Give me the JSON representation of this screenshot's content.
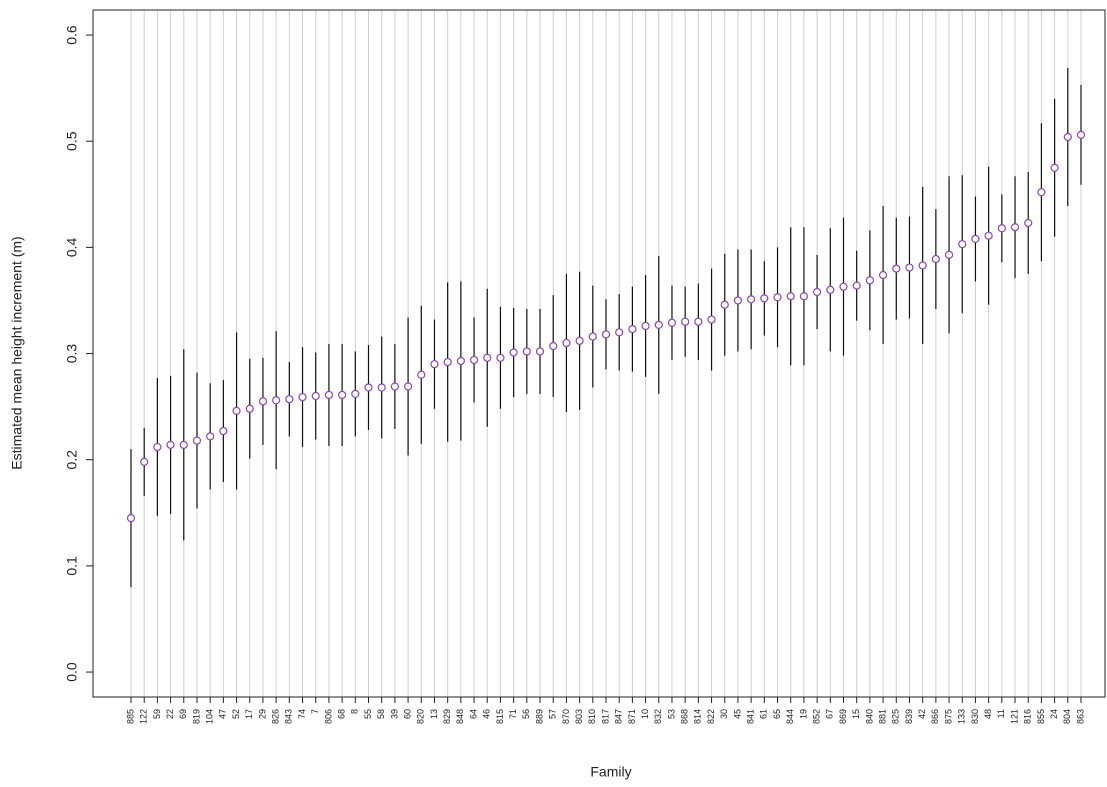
{
  "chart_data": {
    "type": "errorbar",
    "xlabel": "Family",
    "ylabel": "Estimated mean height increment (m)",
    "categories": [
      "885",
      "122",
      "59",
      "22",
      "69",
      "819",
      "104",
      "47",
      "52",
      "17",
      "29",
      "826",
      "843",
      "74",
      "7",
      "806",
      "68",
      "8",
      "55",
      "58",
      "39",
      "60",
      "820",
      "13",
      "829",
      "848",
      "64",
      "46",
      "815",
      "71",
      "56",
      "889",
      "57",
      "870",
      "803",
      "810",
      "817",
      "847",
      "871",
      "10",
      "832",
      "53",
      "868",
      "814",
      "822",
      "30",
      "45",
      "841",
      "61",
      "65",
      "844",
      "19",
      "852",
      "67",
      "869",
      "15",
      "840",
      "881",
      "825",
      "839",
      "42",
      "866",
      "875",
      "133",
      "830",
      "48",
      "11",
      "121",
      "816",
      "855",
      "24",
      "804",
      "863"
    ],
    "series": [
      {
        "color": "#8e44ad",
        "values": [
          0.145,
          0.198,
          0.212,
          0.214,
          0.214,
          0.218,
          0.222,
          0.227,
          0.246,
          0.248,
          0.255,
          0.256,
          0.257,
          0.259,
          0.26,
          0.261,
          0.261,
          0.262,
          0.268,
          0.268,
          0.269,
          0.269,
          0.28,
          0.29,
          0.292,
          0.293,
          0.294,
          0.296,
          0.296,
          0.301,
          0.302,
          0.302,
          0.307,
          0.31,
          0.312,
          0.316,
          0.318,
          0.32,
          0.323,
          0.326,
          0.327,
          0.329,
          0.33,
          0.33,
          0.332,
          0.346,
          0.35,
          0.351,
          0.352,
          0.353,
          0.354,
          0.354,
          0.358,
          0.36,
          0.363,
          0.364,
          0.369,
          0.374,
          0.38,
          0.381,
          0.383,
          0.389,
          0.393,
          0.403,
          0.408,
          0.411,
          0.418,
          0.419,
          0.423,
          0.452,
          0.475,
          0.504,
          0.506
        ],
        "errors": [
          0.065,
          0.032,
          0.065,
          0.065,
          0.09,
          0.064,
          0.05,
          0.048,
          0.074,
          0.047,
          0.041,
          0.065,
          0.035,
          0.047,
          0.041,
          0.048,
          0.048,
          0.04,
          0.04,
          0.048,
          0.04,
          0.065,
          0.065,
          0.042,
          0.075,
          0.075,
          0.04,
          0.065,
          0.048,
          0.042,
          0.04,
          0.04,
          0.048,
          0.065,
          0.065,
          0.048,
          0.033,
          0.036,
          0.04,
          0.048,
          0.065,
          0.035,
          0.033,
          0.036,
          0.048,
          0.048,
          0.048,
          0.047,
          0.035,
          0.047,
          0.065,
          0.065,
          0.035,
          0.058,
          0.065,
          0.033,
          0.047,
          0.065,
          0.048,
          0.048,
          0.074,
          0.047,
          0.074,
          0.065,
          0.04,
          0.065,
          0.032,
          0.048,
          0.048,
          0.065,
          0.065,
          0.065,
          0.047
        ]
      }
    ],
    "ylim": [
      -0.0235,
      0.6236
    ],
    "yticks": [
      {
        "value": 0,
        "label": "0.0"
      },
      0.1,
      0.2,
      0.3,
      0.4,
      0.5,
      0.6
    ],
    "grid": true
  }
}
